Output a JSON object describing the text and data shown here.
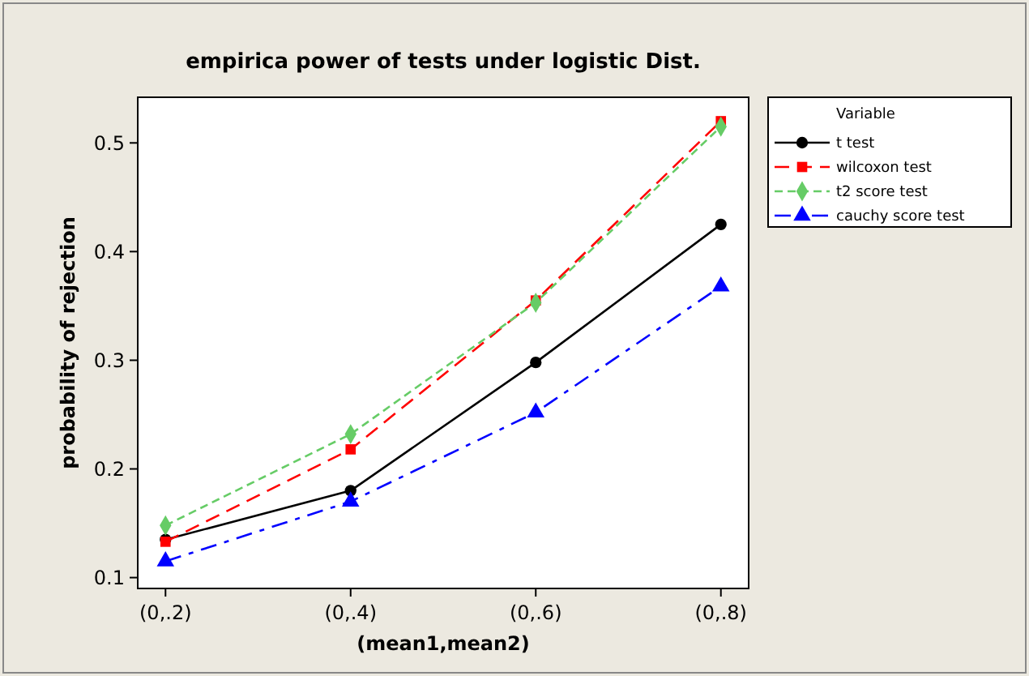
{
  "chart_data": {
    "type": "line",
    "title": "empirica power of tests under logistic Dist.",
    "xlabel": "(mean1,mean2)",
    "ylabel": "probability of rejection",
    "legend_title": "Variable",
    "legend": "top right",
    "categories": [
      "(0,.2)",
      "(0,.4)",
      "(0,.6)",
      "(0,.8)"
    ],
    "ylim": [
      0.09,
      0.542
    ],
    "yticks": [
      0.1,
      0.2,
      0.3,
      0.4,
      0.5
    ],
    "series": [
      {
        "name": "t test",
        "color": "#000000",
        "marker": "circle",
        "line_style": "solid",
        "values": [
          0.135,
          0.18,
          0.298,
          0.425
        ]
      },
      {
        "name": "wilcoxon test",
        "color": "#ff0000",
        "marker": "square",
        "line_style": "dashed",
        "values": [
          0.133,
          0.218,
          0.355,
          0.52
        ]
      },
      {
        "name": "t2 score test",
        "color": "#66cc66",
        "marker": "diamond",
        "line_style": "dotted",
        "values": [
          0.148,
          0.232,
          0.353,
          0.515
        ]
      },
      {
        "name": "cauchy score test",
        "color": "#0000ff",
        "marker": "triangle",
        "line_style": "dashdot",
        "values": [
          0.115,
          0.17,
          0.252,
          0.368
        ]
      }
    ]
  }
}
